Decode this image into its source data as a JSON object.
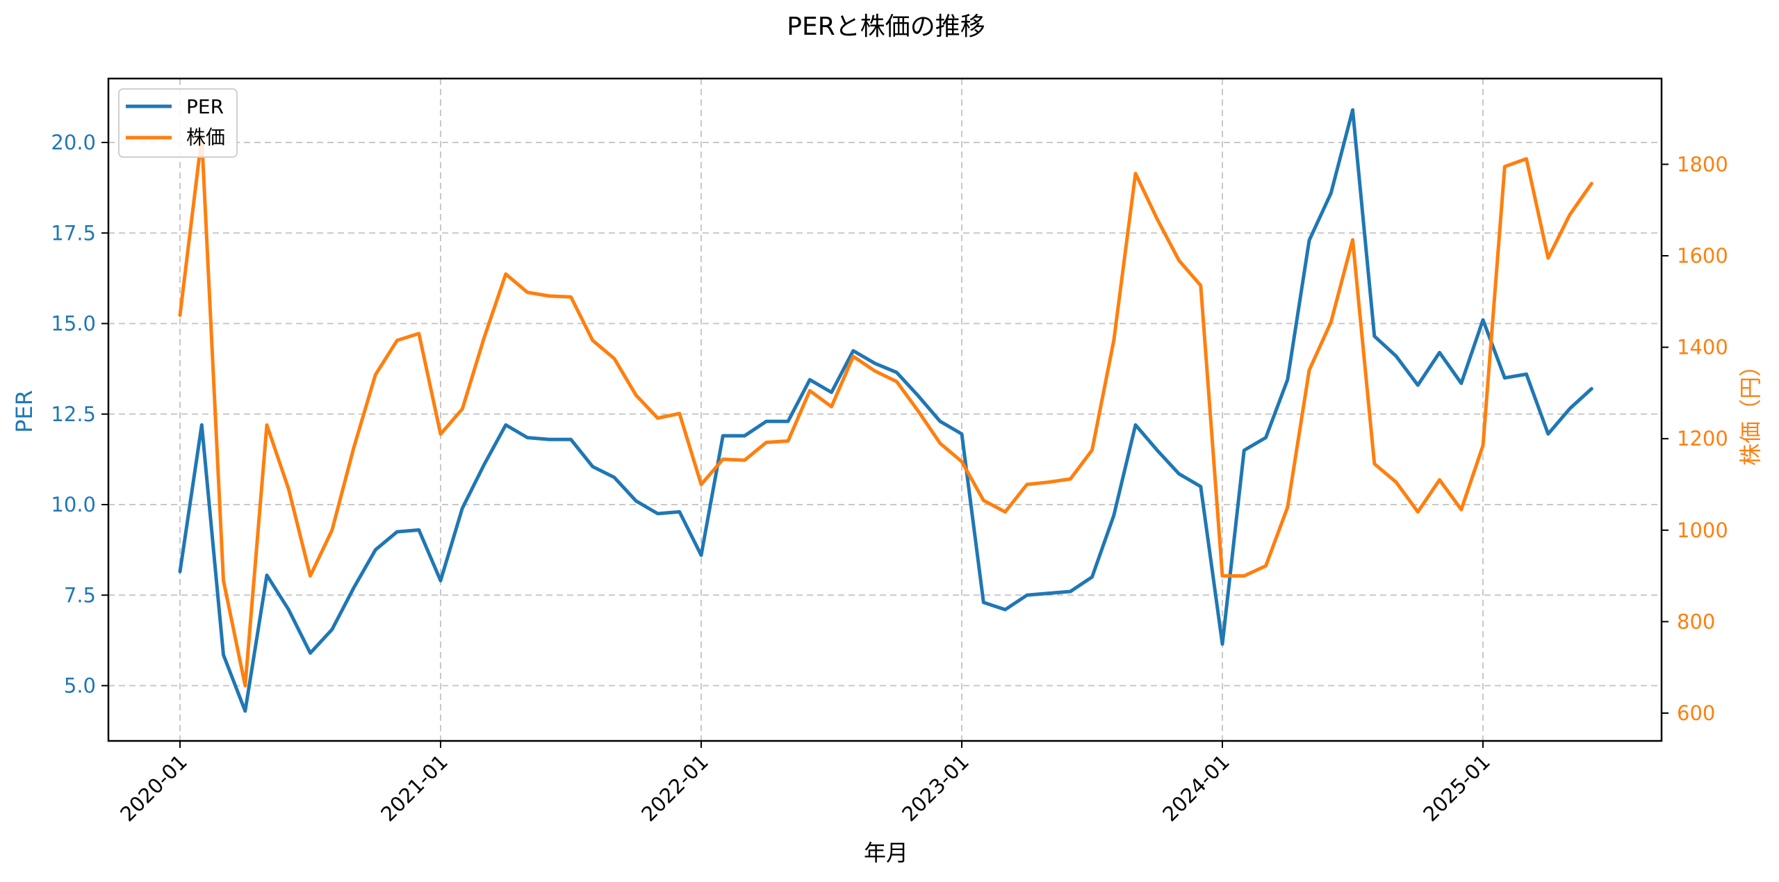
{
  "chart_data": {
    "type": "line",
    "title": "PERと株価の推移",
    "xlabel": "年月",
    "ylabel": "PER",
    "ylabel_right": "株価（円）",
    "x_ticks": [
      "2020-01",
      "2021-01",
      "2022-01",
      "2023-01",
      "2024-01",
      "2025-01"
    ],
    "y_ticks_left": [
      "5.0",
      "7.5",
      "10.0",
      "12.5",
      "15.0",
      "17.5",
      "20.0"
    ],
    "y_ticks_right": [
      "600",
      "800",
      "1000",
      "1200",
      "1400",
      "1600",
      "1800"
    ],
    "ylim_left": [
      3.6,
      21.7
    ],
    "ylim_right": [
      540,
      1970
    ],
    "grid": true,
    "legend_position": "upper left",
    "x": [
      "2020-01",
      "2020-02",
      "2020-03",
      "2020-04",
      "2020-05",
      "2020-06",
      "2020-07",
      "2020-08",
      "2020-09",
      "2020-10",
      "2020-11",
      "2020-12",
      "2021-01",
      "2021-02",
      "2021-03",
      "2021-04",
      "2021-05",
      "2021-06",
      "2021-07",
      "2021-08",
      "2021-09",
      "2021-10",
      "2021-11",
      "2021-12",
      "2022-01",
      "2022-02",
      "2022-03",
      "2022-04",
      "2022-05",
      "2022-06",
      "2022-07",
      "2022-08",
      "2022-09",
      "2022-10",
      "2022-11",
      "2022-12",
      "2023-01",
      "2023-02",
      "2023-03",
      "2023-04",
      "2023-05",
      "2023-06",
      "2023-07",
      "2023-08",
      "2023-09",
      "2023-10",
      "2023-11",
      "2023-12",
      "2024-01",
      "2024-02",
      "2024-03",
      "2024-04",
      "2024-05",
      "2024-06",
      "2024-07",
      "2024-08",
      "2024-09",
      "2024-10",
      "2024-11",
      "2024-12",
      "2025-01",
      "2025-02",
      "2025-03",
      "2025-04",
      "2025-05",
      "2025-06"
    ],
    "series": [
      {
        "name": "PER",
        "axis": "left",
        "color": "#1f77b4",
        "values": [
          8.15,
          12.2,
          5.85,
          4.3,
          8.05,
          7.1,
          5.9,
          6.55,
          7.7,
          8.75,
          9.25,
          9.3,
          7.9,
          9.9,
          11.1,
          12.2,
          11.85,
          11.8,
          11.8,
          11.05,
          10.75,
          10.1,
          9.75,
          9.8,
          8.6,
          11.9,
          11.9,
          12.3,
          12.3,
          13.45,
          13.1,
          14.25,
          13.9,
          13.65,
          13.0,
          12.3,
          11.95,
          7.3,
          7.1,
          7.5,
          7.55,
          7.6,
          8.0,
          9.7,
          12.2,
          11.5,
          10.85,
          10.5,
          6.15,
          11.5,
          11.85,
          13.45,
          17.3,
          18.6,
          20.9,
          14.65,
          14.1,
          13.3,
          14.2,
          13.35,
          15.1,
          13.5,
          13.6,
          11.95,
          12.65,
          13.2
        ]
      },
      {
        "name": "株価",
        "axis": "right",
        "color": "#ff7f0e",
        "values": [
          1470,
          1860,
          890,
          660,
          1230,
          1090,
          900,
          1000,
          1180,
          1340,
          1415,
          1430,
          1210,
          1265,
          1420,
          1560,
          1520,
          1512,
          1510,
          1415,
          1375,
          1295,
          1245,
          1255,
          1100,
          1155,
          1153,
          1192,
          1195,
          1305,
          1270,
          1380,
          1348,
          1325,
          1260,
          1190,
          1150,
          1065,
          1040,
          1100,
          1105,
          1112,
          1175,
          1415,
          1780,
          1680,
          1590,
          1535,
          900,
          900,
          922,
          1050,
          1350,
          1455,
          1635,
          1145,
          1105,
          1040,
          1110,
          1045,
          1185,
          1795,
          1812,
          1595,
          1690,
          1758
        ]
      }
    ]
  },
  "legend": {
    "items": [
      {
        "label": "PER",
        "color": "#1f77b4"
      },
      {
        "label": "株価",
        "color": "#ff7f0e"
      }
    ]
  },
  "colors": {
    "left_axis": "#1f77b4",
    "right_axis": "#ff7f0e"
  }
}
